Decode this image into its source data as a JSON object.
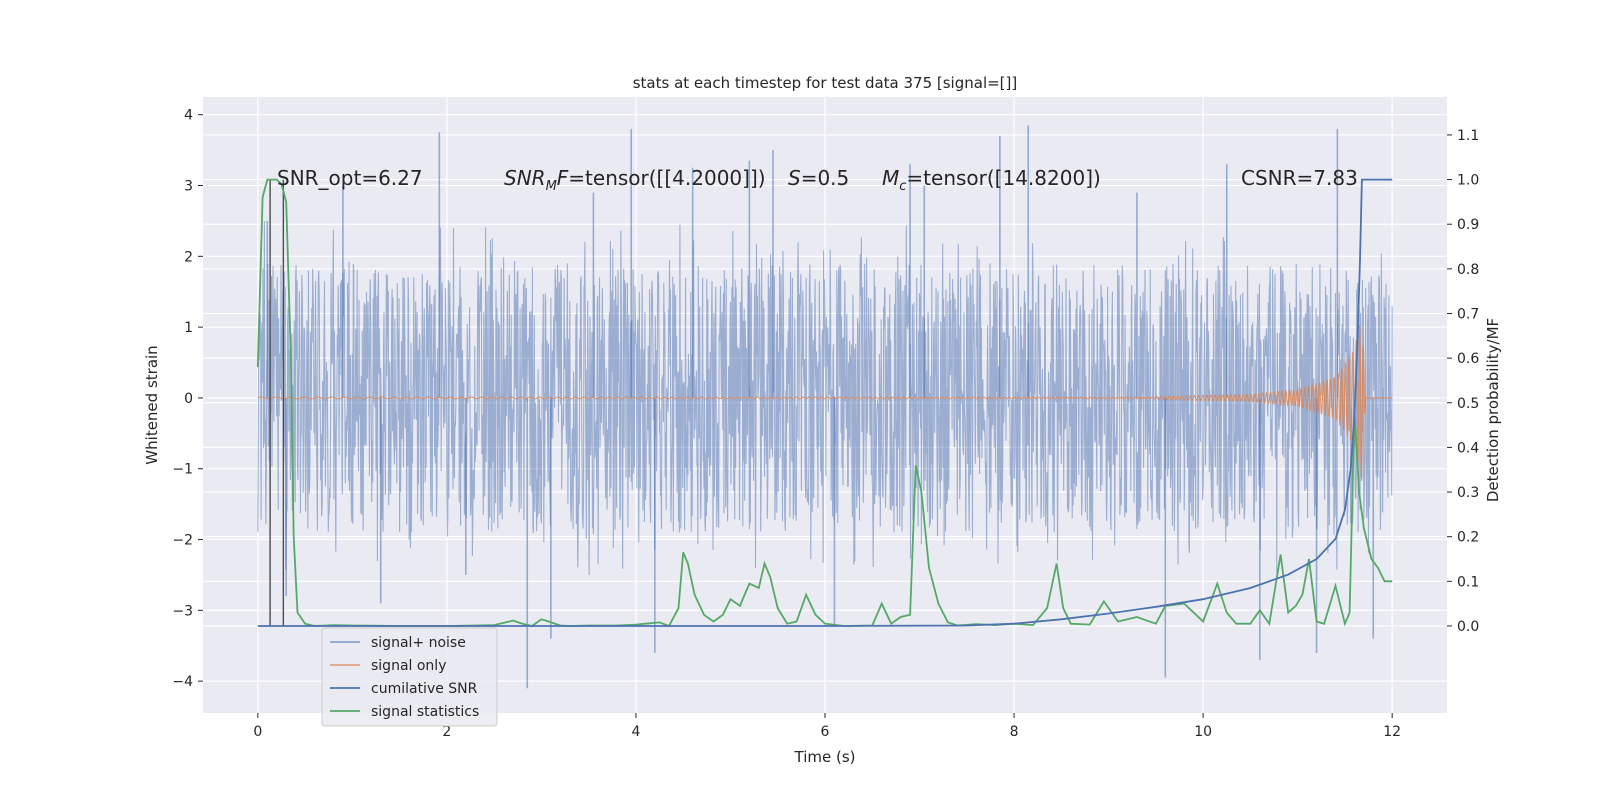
{
  "chart_data": {
    "type": "line",
    "title": "stats at each timestep for test data 375 [signal=[]]",
    "xlabel": "Time (s)",
    "ylabel": "Whitened strain",
    "y2label": "Detection probability/MF",
    "xlim": [
      -0.58,
      12.58
    ],
    "ylim": [
      -4.45,
      4.25
    ],
    "y2lim": [
      -0.195,
      1.185
    ],
    "x_ticks": [
      0,
      2,
      4,
      6,
      8,
      10,
      12
    ],
    "y_ticks": [
      -4,
      -3,
      -2,
      -1,
      0,
      1,
      2,
      3,
      4
    ],
    "y2_ticks": [
      0.0,
      0.1,
      0.2,
      0.3,
      0.4,
      0.5,
      0.6,
      0.7,
      0.8,
      0.9,
      1.0,
      1.1
    ],
    "x_tick_labels": [
      "0",
      "2",
      "4",
      "6",
      "8",
      "10",
      "12"
    ],
    "y_tick_labels": [
      "−4",
      "−3",
      "−2",
      "−1",
      "0",
      "1",
      "2",
      "3",
      "4"
    ],
    "y2_tick_labels": [
      "0.0",
      "0.1",
      "0.2",
      "0.3",
      "0.4",
      "0.5",
      "0.6",
      "0.7",
      "0.8",
      "0.9",
      "1.0",
      "1.1"
    ],
    "annotations": {
      "snr_opt": "SNR_opt=6.27",
      "snr_mf_sym": "SNR",
      "snr_mf_sub": "M",
      "snr_mf_f": "F",
      "snr_mf_val": "=tensor([[4.2000]])",
      "s_sym": "S",
      "s_val": "=0.5",
      "mc_sym": "M",
      "mc_sub": "c",
      "mc_val": "=tensor([14.8200])",
      "csnr": "CSNR=7.83"
    },
    "legend": {
      "location": "lower-left",
      "entries": [
        "signal+ noise",
        "signal only",
        "cumilative SNR",
        "signal statistics"
      ]
    },
    "colors": {
      "background": "#eaeaf2",
      "grid": "#ffffff",
      "noise": "#4c72b0",
      "signal": "#dd8452",
      "csnr": "#4c72b0",
      "stats": "#55a868",
      "marker_lines": "#4d4d4d"
    },
    "noise_band": {
      "typical_low": -1.9,
      "typical_high": 1.9,
      "extreme_low": -4.1,
      "extreme_high": 3.85
    },
    "noise_spikes": [
      {
        "x": 0.1,
        "y": 2.5
      },
      {
        "x": 0.3,
        "y": -2.8
      },
      {
        "x": 0.9,
        "y": 3.0
      },
      {
        "x": 1.3,
        "y": -2.9
      },
      {
        "x": 1.92,
        "y": 3.75
      },
      {
        "x": 2.2,
        "y": -2.5
      },
      {
        "x": 2.85,
        "y": -4.1
      },
      {
        "x": 3.1,
        "y": -3.4
      },
      {
        "x": 3.55,
        "y": 2.9
      },
      {
        "x": 3.95,
        "y": 3.8
      },
      {
        "x": 4.2,
        "y": -3.6
      },
      {
        "x": 4.6,
        "y": 3.25
      },
      {
        "x": 5.2,
        "y": 3.35
      },
      {
        "x": 5.45,
        "y": 3.5
      },
      {
        "x": 6.1,
        "y": -3.2
      },
      {
        "x": 6.9,
        "y": 3.3
      },
      {
        "x": 7.05,
        "y": 3.0
      },
      {
        "x": 7.85,
        "y": 3.7
      },
      {
        "x": 8.15,
        "y": 3.85
      },
      {
        "x": 9.3,
        "y": 2.9
      },
      {
        "x": 9.6,
        "y": -3.95
      },
      {
        "x": 10.25,
        "y": 3.3
      },
      {
        "x": 10.6,
        "y": -3.7
      },
      {
        "x": 11.2,
        "y": -3.6
      },
      {
        "x": 11.42,
        "y": 3.8
      },
      {
        "x": 11.8,
        "y": -3.4
      }
    ],
    "signal_only": {
      "flat_until": 9.5,
      "envelope": [
        [
          9.5,
          0.02
        ],
        [
          10.5,
          0.05
        ],
        [
          11.0,
          0.12
        ],
        [
          11.4,
          0.3
        ],
        [
          11.6,
          0.7
        ],
        [
          11.68,
          1.2
        ],
        [
          11.72,
          0.0
        ],
        [
          12.0,
          0.0
        ]
      ]
    },
    "cumulative_snr": {
      "x": [
        0.0,
        6.0,
        7.5,
        8.0,
        8.5,
        9.0,
        9.5,
        10.0,
        10.5,
        10.9,
        11.2,
        11.4,
        11.5,
        11.56,
        11.6,
        11.63,
        11.66,
        11.68,
        12.0
      ],
      "y": [
        0.0,
        0.0,
        0.001,
        0.005,
        0.015,
        0.028,
        0.043,
        0.06,
        0.085,
        0.115,
        0.15,
        0.195,
        0.26,
        0.35,
        0.47,
        0.62,
        0.82,
        1.0,
        1.0
      ]
    },
    "signal_statistics": {
      "x": [
        0.0,
        0.05,
        0.1,
        0.15,
        0.2,
        0.25,
        0.3,
        0.35,
        0.38,
        0.42,
        0.5,
        0.6,
        0.8,
        1.0,
        1.5,
        2.0,
        2.5,
        2.7,
        2.8,
        2.9,
        3.0,
        3.05,
        3.2,
        3.3,
        3.5,
        3.8,
        4.0,
        4.1,
        4.25,
        4.35,
        4.45,
        4.5,
        4.55,
        4.62,
        4.72,
        4.82,
        4.92,
        5.0,
        5.1,
        5.2,
        5.3,
        5.36,
        5.42,
        5.5,
        5.6,
        5.7,
        5.8,
        5.9,
        6.0,
        6.2,
        6.5,
        6.6,
        6.7,
        6.8,
        6.9,
        6.96,
        7.02,
        7.1,
        7.2,
        7.3,
        7.4,
        7.6,
        7.8,
        8.0,
        8.2,
        8.35,
        8.45,
        8.52,
        8.6,
        8.8,
        8.95,
        9.1,
        9.3,
        9.5,
        9.6,
        9.8,
        10.0,
        10.15,
        10.25,
        10.35,
        10.5,
        10.6,
        10.7,
        10.82,
        10.9,
        10.98,
        11.05,
        11.12,
        11.2,
        11.28,
        11.4,
        11.5,
        11.55,
        11.6,
        11.65,
        11.7,
        11.78,
        11.85,
        11.92,
        12.0
      ],
      "y": [
        0.58,
        0.96,
        1.0,
        1.0,
        1.0,
        0.99,
        0.95,
        0.6,
        0.2,
        0.03,
        0.005,
        0.0,
        0.002,
        0.001,
        0.0,
        0.0,
        0.002,
        0.012,
        0.005,
        0.0,
        0.015,
        0.012,
        0.001,
        0.0,
        0.001,
        0.001,
        0.003,
        0.005,
        0.008,
        0.0,
        0.04,
        0.165,
        0.14,
        0.07,
        0.025,
        0.01,
        0.025,
        0.06,
        0.045,
        0.095,
        0.085,
        0.14,
        0.11,
        0.04,
        0.005,
        0.01,
        0.07,
        0.025,
        0.005,
        0.0,
        0.001,
        0.05,
        0.005,
        0.02,
        0.025,
        0.36,
        0.3,
        0.13,
        0.05,
        0.008,
        0.001,
        0.004,
        0.002,
        0.005,
        0.002,
        0.04,
        0.14,
        0.04,
        0.005,
        0.003,
        0.055,
        0.01,
        0.02,
        0.005,
        0.045,
        0.05,
        0.01,
        0.095,
        0.03,
        0.005,
        0.005,
        0.035,
        0.005,
        0.16,
        0.03,
        0.045,
        0.07,
        0.15,
        0.01,
        0.005,
        0.09,
        0.005,
        0.03,
        0.48,
        0.3,
        0.22,
        0.15,
        0.13,
        0.1,
        0.1
      ]
    },
    "marker_lines": [
      0.13,
      0.27
    ]
  }
}
